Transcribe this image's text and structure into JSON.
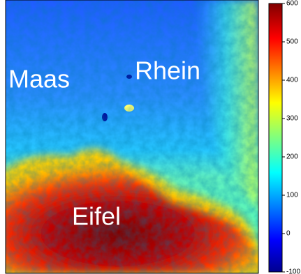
{
  "labels": [
    "Maas",
    "Rhein",
    "Eifel"
  ],
  "colorbar": {
    "lim": [
      -100,
      600
    ],
    "ticks": [
      -100,
      0,
      100,
      200,
      300,
      400,
      500,
      600
    ]
  }
}
